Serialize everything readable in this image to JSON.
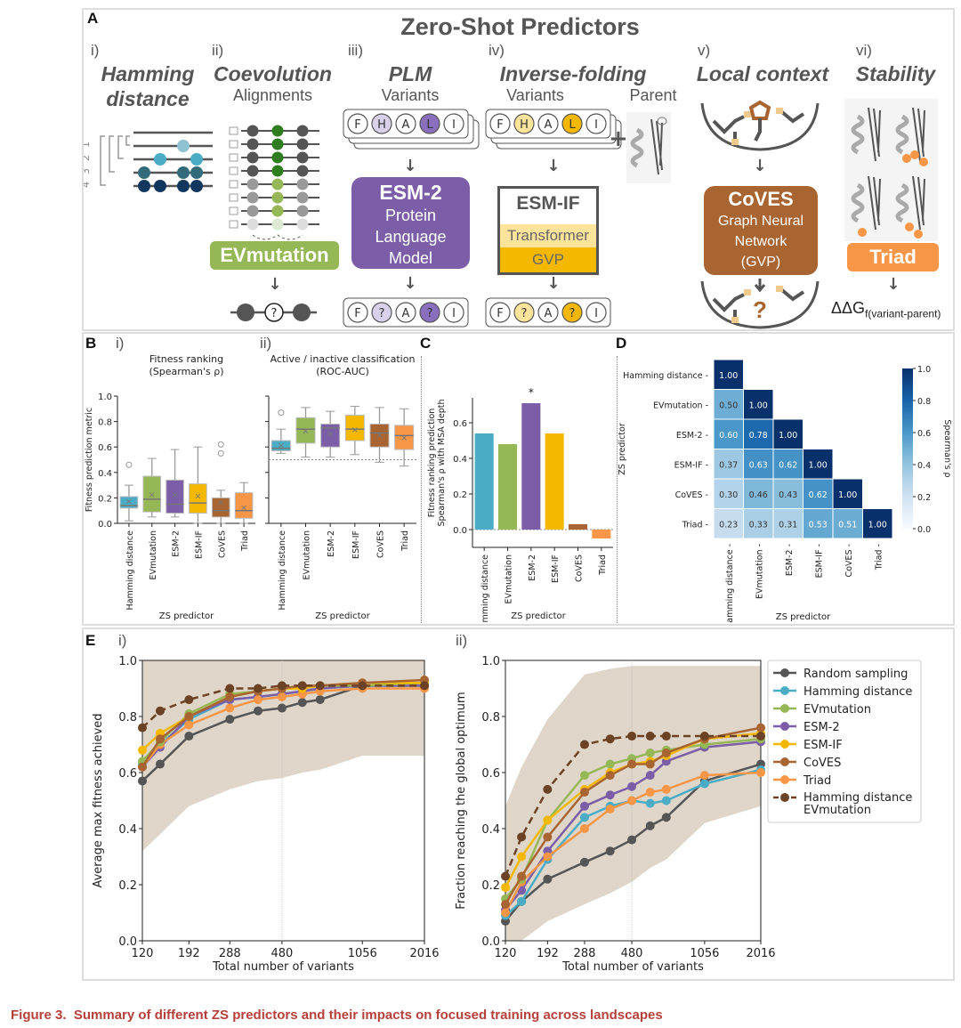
{
  "panel_a": {
    "label": "A",
    "title": "Zero-Shot Predictors",
    "columns": [
      {
        "num": "i)",
        "title": "Hamming distance",
        "bracket_labels": [
          "4",
          "3",
          "2",
          "1"
        ]
      },
      {
        "num": "ii)",
        "title": "Coevolution",
        "subtitle": "Alignments",
        "box": "EVmutation",
        "color": "#95b755"
      },
      {
        "num": "iii)",
        "title": "PLM",
        "subtitle": "Variants",
        "box_title": "ESM-2",
        "box_lines": [
          "Protein",
          "Language",
          "Model"
        ],
        "color": "#7b5ea7",
        "seq_in": [
          "F",
          "H",
          "A",
          "L",
          "I"
        ],
        "seq_out": [
          "F",
          "?",
          "A",
          "?",
          "I"
        ]
      },
      {
        "num": "iv)",
        "title": "Inverse-folding",
        "subtitle": "Variants",
        "subtitle2": "Parent",
        "box_title": "ESM-IF",
        "layers": [
          "Transformer",
          "GVP"
        ],
        "color": "#f5b800",
        "seq_in": [
          "F",
          "H",
          "A",
          "L",
          "I"
        ],
        "seq_out": [
          "F",
          "?",
          "A",
          "?",
          "I"
        ]
      },
      {
        "num": "v)",
        "title": "Local context",
        "box_title": "CoVES",
        "box_lines": [
          "Graph Neural",
          "Network",
          "(GVP)"
        ],
        "color": "#a86431",
        "question": "?"
      },
      {
        "num": "vi)",
        "title": "Stability",
        "box": "Triad",
        "color": "#f79646",
        "output_main": "ΔΔG",
        "output_sub": "f(variant-parent)"
      }
    ],
    "plus": "+"
  },
  "panel_b": {
    "label": "B",
    "sub_i": "i)",
    "sub_ii": "ii)"
  },
  "panel_c": {
    "label": "C"
  },
  "panel_d": {
    "label": "D"
  },
  "panel_e": {
    "label": "E",
    "sub_i": "i)",
    "sub_ii": "ii)"
  },
  "caption": {
    "prefix": "Figure 3.",
    "text": "Summary of different ZS predictors and their impacts on focused training across landscapes"
  },
  "chart_data": [
    {
      "id": "B-i",
      "type": "box",
      "title": "Fitness ranking\n(Spearman's ρ)",
      "xlabel": "ZS predictor",
      "ylabel": "Fitness prediction metric",
      "ylim": [
        0,
        1.0
      ],
      "yticks": [
        0.0,
        0.2,
        0.4,
        0.6,
        0.8,
        1.0
      ],
      "categories": [
        "Hamming distance",
        "EVmutation",
        "ESM-2",
        "ESM-IF",
        "CoVES",
        "Triad"
      ],
      "colors": [
        "#4bacc6",
        "#95b755",
        "#7b5ea7",
        "#f5b800",
        "#a86431",
        "#f79646"
      ],
      "boxes": [
        {
          "min": 0.02,
          "q1": 0.12,
          "median": 0.14,
          "q3": 0.21,
          "max": 0.3,
          "mean": 0.18,
          "outliers": [
            0.46
          ]
        },
        {
          "min": 0.05,
          "q1": 0.09,
          "median": 0.19,
          "q3": 0.37,
          "max": 0.51,
          "mean": 0.23,
          "outliers": []
        },
        {
          "min": 0.05,
          "q1": 0.08,
          "median": 0.15,
          "q3": 0.34,
          "max": 0.58,
          "mean": 0.23,
          "outliers": []
        },
        {
          "min": 0.0,
          "q1": 0.08,
          "median": 0.16,
          "q3": 0.31,
          "max": 0.6,
          "mean": 0.22,
          "outliers": []
        },
        {
          "min": 0.0,
          "q1": 0.05,
          "median": 0.1,
          "q3": 0.2,
          "max": 0.26,
          "mean": 0.17,
          "outliers": [
            0.55,
            0.62
          ]
        },
        {
          "min": 0.0,
          "q1": 0.04,
          "median": 0.1,
          "q3": 0.24,
          "max": 0.32,
          "mean": 0.13,
          "outliers": []
        }
      ]
    },
    {
      "id": "B-ii",
      "type": "box",
      "title": "Active / inactive classification\n(ROC-AUC)",
      "xlabel": "ZS predictor",
      "ylim": [
        0,
        1.0
      ],
      "reference_line": 0.5,
      "categories": [
        "Hamming distance",
        "EVmutation",
        "ESM-2",
        "ESM-IF",
        "CoVES",
        "Triad"
      ],
      "colors": [
        "#4bacc6",
        "#95b755",
        "#7b5ea7",
        "#f5b800",
        "#a86431",
        "#f79646"
      ],
      "boxes": [
        {
          "min": 0.55,
          "q1": 0.57,
          "median": 0.59,
          "q3": 0.65,
          "max": 0.74,
          "mean": 0.62,
          "outliers": [
            0.87
          ]
        },
        {
          "min": 0.52,
          "q1": 0.63,
          "median": 0.74,
          "q3": 0.83,
          "max": 0.91,
          "mean": 0.73,
          "outliers": []
        },
        {
          "min": 0.52,
          "q1": 0.6,
          "median": 0.75,
          "q3": 0.78,
          "max": 0.88,
          "mean": 0.71,
          "outliers": []
        },
        {
          "min": 0.54,
          "q1": 0.65,
          "median": 0.74,
          "q3": 0.85,
          "max": 0.92,
          "mean": 0.74,
          "outliers": []
        },
        {
          "min": 0.48,
          "q1": 0.6,
          "median": 0.71,
          "q3": 0.78,
          "max": 0.91,
          "mean": 0.7,
          "outliers": []
        },
        {
          "min": 0.45,
          "q1": 0.58,
          "median": 0.69,
          "q3": 0.77,
          "max": 0.9,
          "mean": 0.68,
          "outliers": []
        }
      ]
    },
    {
      "id": "C",
      "type": "bar",
      "xlabel": "ZS predictor",
      "ylabel": "Fitness ranking prediction\nSpearman's ρ with MSA depth",
      "ylim": [
        -0.1,
        0.75
      ],
      "yticks": [
        0.0,
        0.2,
        0.4,
        0.6
      ],
      "categories": [
        "Hamming distance",
        "EVmutation",
        "ESM-2",
        "ESM-IF",
        "CoVES",
        "Triad"
      ],
      "values": [
        0.54,
        0.48,
        0.71,
        0.54,
        0.03,
        -0.05
      ],
      "colors": [
        "#4bacc6",
        "#95b755",
        "#7b5ea7",
        "#f5b800",
        "#a86431",
        "#f79646"
      ],
      "annotations": [
        {
          "category": "ESM-2",
          "text": "*"
        }
      ]
    },
    {
      "id": "D",
      "type": "heatmap",
      "xlabel": "ZS predictor",
      "ylabel": "ZS predictor",
      "colorbar_label": "Spearman's ρ",
      "colorbar_ticks": [
        0.0,
        0.2,
        0.4,
        0.6,
        0.8,
        1.0
      ],
      "labels": [
        "Hamming distance",
        "EVmutation",
        "ESM-2",
        "ESM-IF",
        "CoVES",
        "Triad"
      ],
      "matrix": [
        [
          1.0
        ],
        [
          0.5,
          1.0
        ],
        [
          0.6,
          0.78,
          1.0
        ],
        [
          0.37,
          0.63,
          0.62,
          1.0
        ],
        [
          0.3,
          0.46,
          0.43,
          0.62,
          1.0
        ],
        [
          0.23,
          0.33,
          0.31,
          0.53,
          0.51,
          1.0
        ]
      ]
    },
    {
      "id": "E-i",
      "type": "line",
      "xlabel": "Total number of variants",
      "ylabel": "Average max fitness achieved",
      "ylim": [
        0,
        1.0
      ],
      "yticks": [
        0.0,
        0.2,
        0.4,
        0.6,
        0.8,
        1.0
      ],
      "xtick_labels": [
        "120",
        "192",
        "288",
        "480",
        "1056",
        "2016"
      ],
      "x": [
        120,
        144,
        192,
        288,
        384,
        480,
        576,
        672,
        1056,
        2016
      ],
      "series": [
        {
          "name": "Random sampling",
          "color": "#555555",
          "dashed": false,
          "values": [
            0.57,
            0.63,
            0.73,
            0.79,
            0.82,
            0.83,
            0.85,
            0.86,
            0.91,
            0.91
          ]
        },
        {
          "name": "Hamming distance",
          "color": "#4bacc6",
          "dashed": false,
          "values": [
            0.63,
            0.7,
            0.79,
            0.86,
            0.87,
            0.88,
            0.89,
            0.9,
            0.91,
            0.91
          ]
        },
        {
          "name": "EVmutation",
          "color": "#95b755",
          "dashed": false,
          "values": [
            0.64,
            0.71,
            0.81,
            0.88,
            0.89,
            0.9,
            0.9,
            0.91,
            0.91,
            0.92
          ]
        },
        {
          "name": "ESM-2",
          "color": "#7b5ea7",
          "dashed": false,
          "values": [
            0.62,
            0.69,
            0.8,
            0.86,
            0.87,
            0.88,
            0.89,
            0.9,
            0.91,
            0.91
          ]
        },
        {
          "name": "ESM-IF",
          "color": "#f5b800",
          "dashed": false,
          "values": [
            0.68,
            0.74,
            0.8,
            0.87,
            0.89,
            0.9,
            0.9,
            0.91,
            0.92,
            0.92
          ]
        },
        {
          "name": "CoVES",
          "color": "#a86431",
          "dashed": false,
          "values": [
            0.62,
            0.72,
            0.8,
            0.87,
            0.89,
            0.9,
            0.91,
            0.91,
            0.92,
            0.93
          ]
        },
        {
          "name": "Triad",
          "color": "#f79646",
          "dashed": false,
          "values": [
            0.62,
            0.7,
            0.77,
            0.83,
            0.86,
            0.87,
            0.88,
            0.89,
            0.9,
            0.9
          ]
        },
        {
          "name": "Hamming distance EVmutation",
          "color": "#6b4226",
          "dashed": true,
          "values": [
            0.76,
            0.82,
            0.86,
            0.9,
            0.9,
            0.91,
            0.91,
            0.91,
            0.91,
            0.91
          ]
        }
      ]
    },
    {
      "id": "E-ii",
      "type": "line",
      "xlabel": "Total number of variants",
      "ylabel": "Fraction reaching the global optimum",
      "ylim": [
        0,
        1.0
      ],
      "yticks": [
        0.0,
        0.2,
        0.4,
        0.6,
        0.8,
        1.0
      ],
      "xtick_labels": [
        "120",
        "192",
        "288",
        "480",
        "1056",
        "2016"
      ],
      "x": [
        120,
        144,
        192,
        288,
        384,
        480,
        576,
        672,
        1056,
        2016
      ],
      "legend": "outside-right",
      "series": [
        {
          "name": "Random sampling",
          "color": "#555555",
          "dashed": false,
          "values": [
            0.07,
            0.14,
            0.22,
            0.28,
            0.32,
            0.36,
            0.41,
            0.44,
            0.57,
            0.63
          ]
        },
        {
          "name": "Hamming distance",
          "color": "#4bacc6",
          "dashed": false,
          "values": [
            0.09,
            0.14,
            0.29,
            0.44,
            0.48,
            0.5,
            0.49,
            0.5,
            0.56,
            0.61
          ]
        },
        {
          "name": "EVmutation",
          "color": "#95b755",
          "dashed": false,
          "values": [
            0.15,
            0.22,
            0.43,
            0.59,
            0.63,
            0.65,
            0.67,
            0.68,
            0.7,
            0.72
          ]
        },
        {
          "name": "ESM-2",
          "color": "#7b5ea7",
          "dashed": false,
          "values": [
            0.11,
            0.18,
            0.32,
            0.48,
            0.52,
            0.55,
            0.59,
            0.64,
            0.69,
            0.71
          ]
        },
        {
          "name": "ESM-IF",
          "color": "#f5b800",
          "dashed": false,
          "values": [
            0.19,
            0.3,
            0.43,
            0.54,
            0.6,
            0.63,
            0.64,
            0.66,
            0.72,
            0.74
          ]
        },
        {
          "name": "CoVES",
          "color": "#a86431",
          "dashed": false,
          "values": [
            0.13,
            0.23,
            0.37,
            0.53,
            0.59,
            0.63,
            0.63,
            0.67,
            0.72,
            0.76
          ]
        },
        {
          "name": "Triad",
          "color": "#f79646",
          "dashed": false,
          "values": [
            0.1,
            0.21,
            0.3,
            0.4,
            0.47,
            0.5,
            0.53,
            0.54,
            0.59,
            0.6
          ]
        },
        {
          "name": "Hamming distance EVmutation",
          "color": "#6b4226",
          "dashed": true,
          "values": [
            0.23,
            0.37,
            0.54,
            0.7,
            0.72,
            0.73,
            0.73,
            0.73,
            0.73,
            0.73
          ]
        }
      ]
    }
  ]
}
